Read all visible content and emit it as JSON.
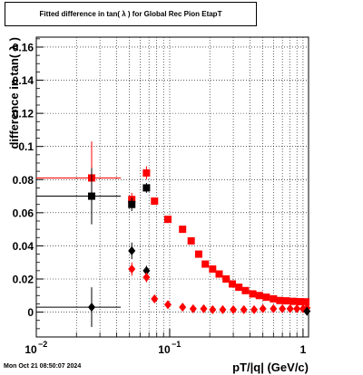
{
  "title": "Fitted difference in tan( λ ) for Global Rec Pion EtapT",
  "date_stamp": "Mon Oct 21 08:50:07 2024",
  "chart_data": {
    "type": "scatter",
    "title": "Fitted difference in tan( λ ) for Global Rec Pion EtapT",
    "xlabel": "pT/|q| (GeV/c)",
    "ylabel": "difference in tan( λ )",
    "xscale": "log",
    "xlim": [
      0.01,
      1.1
    ],
    "ylim": [
      -0.015,
      0.166
    ],
    "grid": true,
    "x_ticks": [
      {
        "value": 0.01,
        "base": "10",
        "exp": "−2"
      },
      {
        "value": 0.1,
        "base": "10",
        "exp": "−1"
      },
      {
        "value": 1,
        "base": "1",
        "exp": ""
      }
    ],
    "y_ticks": [
      "0",
      "0.02",
      "0.04",
      "0.06",
      "0.08",
      "0.1",
      "0.12",
      "0.14",
      "0.16"
    ],
    "y_tick_values": [
      0,
      0.02,
      0.04,
      0.06,
      0.08,
      0.1,
      0.12,
      0.14,
      0.16
    ],
    "series": [
      {
        "marker": "square",
        "color": "#ff0000",
        "x": [
          0.026,
          0.052,
          0.067,
          0.077,
          0.097,
          0.125,
          0.145,
          0.165,
          0.185,
          0.21,
          0.235,
          0.265,
          0.295,
          0.33,
          0.37,
          0.42,
          0.47,
          0.53,
          0.6,
          0.67,
          0.75,
          0.85,
          0.95,
          1.05
        ],
        "y": [
          0.081,
          0.068,
          0.084,
          0.067,
          0.056,
          0.05,
          0.043,
          0.035,
          0.029,
          0.026,
          0.023,
          0.02,
          0.017,
          0.015,
          0.013,
          0.011,
          0.01,
          0.009,
          0.008,
          0.007,
          0.0068,
          0.0065,
          0.0063,
          0.0062
        ],
        "xerr_lo": [
          0.016,
          0.003,
          0.002,
          0.002,
          0.003,
          0.004,
          0.004,
          0.004,
          0.004,
          0.005,
          0.005,
          0.006,
          0.006,
          0.007,
          0.008,
          0.009,
          0.01,
          0.012,
          0.013,
          0.014,
          0.016,
          0.018,
          0.02,
          0.02
        ],
        "xerr_hi": [
          0.017,
          0.003,
          0.002,
          0.002,
          0.003,
          0.004,
          0.004,
          0.004,
          0.004,
          0.005,
          0.005,
          0.006,
          0.006,
          0.007,
          0.008,
          0.009,
          0.01,
          0.012,
          0.013,
          0.014,
          0.016,
          0.018,
          0.02,
          0.02
        ],
        "yerr": [
          0.022,
          0.004,
          0.004,
          0.002,
          0.0015,
          0.001,
          0.001,
          0.001,
          0.001,
          0.001,
          0.001,
          0.001,
          0.001,
          0.001,
          0.001,
          0.001,
          0.001,
          0.001,
          0.001,
          0.001,
          0.001,
          0.001,
          0.001,
          0.001
        ]
      },
      {
        "marker": "square",
        "color": "#000000",
        "x": [
          0.026,
          0.052,
          0.067
        ],
        "y": [
          0.07,
          0.065,
          0.075
        ],
        "xerr_lo": [
          0.016,
          0.003,
          0.002
        ],
        "xerr_hi": [
          0.017,
          0.003,
          0.002
        ],
        "yerr": [
          0.017,
          0.004,
          0.003
        ]
      },
      {
        "marker": "diamond",
        "color": "#000000",
        "x": [
          0.026,
          0.052,
          0.067
        ],
        "y": [
          0.003,
          0.037,
          0.025
        ],
        "xerr_lo": [
          0.016,
          0.003,
          0.002
        ],
        "xerr_hi": [
          0.017,
          0.003,
          0.002
        ],
        "yerr": [
          0.012,
          0.005,
          0.003
        ]
      },
      {
        "marker": "diamond",
        "color": "#ff0000",
        "x": [
          0.052,
          0.067,
          0.077,
          0.097,
          0.125,
          0.15,
          0.18,
          0.21,
          0.25,
          0.3,
          0.36,
          0.43,
          0.5,
          0.6,
          0.7,
          0.8,
          0.9,
          1.0,
          1.07
        ],
        "y": [
          0.026,
          0.021,
          0.008,
          0.0045,
          0.003,
          0.002,
          0.002,
          0.0015,
          0.0015,
          0.0015,
          0.0015,
          0.0015,
          0.002,
          0.002,
          0.002,
          0.002,
          0.002,
          0.002,
          0.0025
        ],
        "xerr_lo": [
          0.003,
          0.002,
          0.002,
          0.003,
          0.004,
          0.005,
          0.005,
          0.006,
          0.007,
          0.008,
          0.009,
          0.01,
          0.012,
          0.013,
          0.014,
          0.016,
          0.018,
          0.02,
          0.02
        ],
        "xerr_hi": [
          0.003,
          0.002,
          0.002,
          0.003,
          0.004,
          0.005,
          0.005,
          0.006,
          0.007,
          0.008,
          0.009,
          0.01,
          0.012,
          0.013,
          0.014,
          0.016,
          0.018,
          0.02,
          0.02
        ],
        "yerr": [
          0.004,
          0.003,
          0.001,
          0.001,
          0.0008,
          0.0008,
          0.0008,
          0.0008,
          0.0008,
          0.0008,
          0.0008,
          0.0008,
          0.0008,
          0.0008,
          0.0008,
          0.0008,
          0.0008,
          0.0008,
          0.0008
        ]
      },
      {
        "marker": "diamond",
        "color": "#000000",
        "x": [
          1.07
        ],
        "y": [
          0.0005
        ],
        "xerr_lo": [
          0.02
        ],
        "xerr_hi": [
          0.02
        ],
        "yerr": [
          0.001
        ]
      }
    ]
  }
}
